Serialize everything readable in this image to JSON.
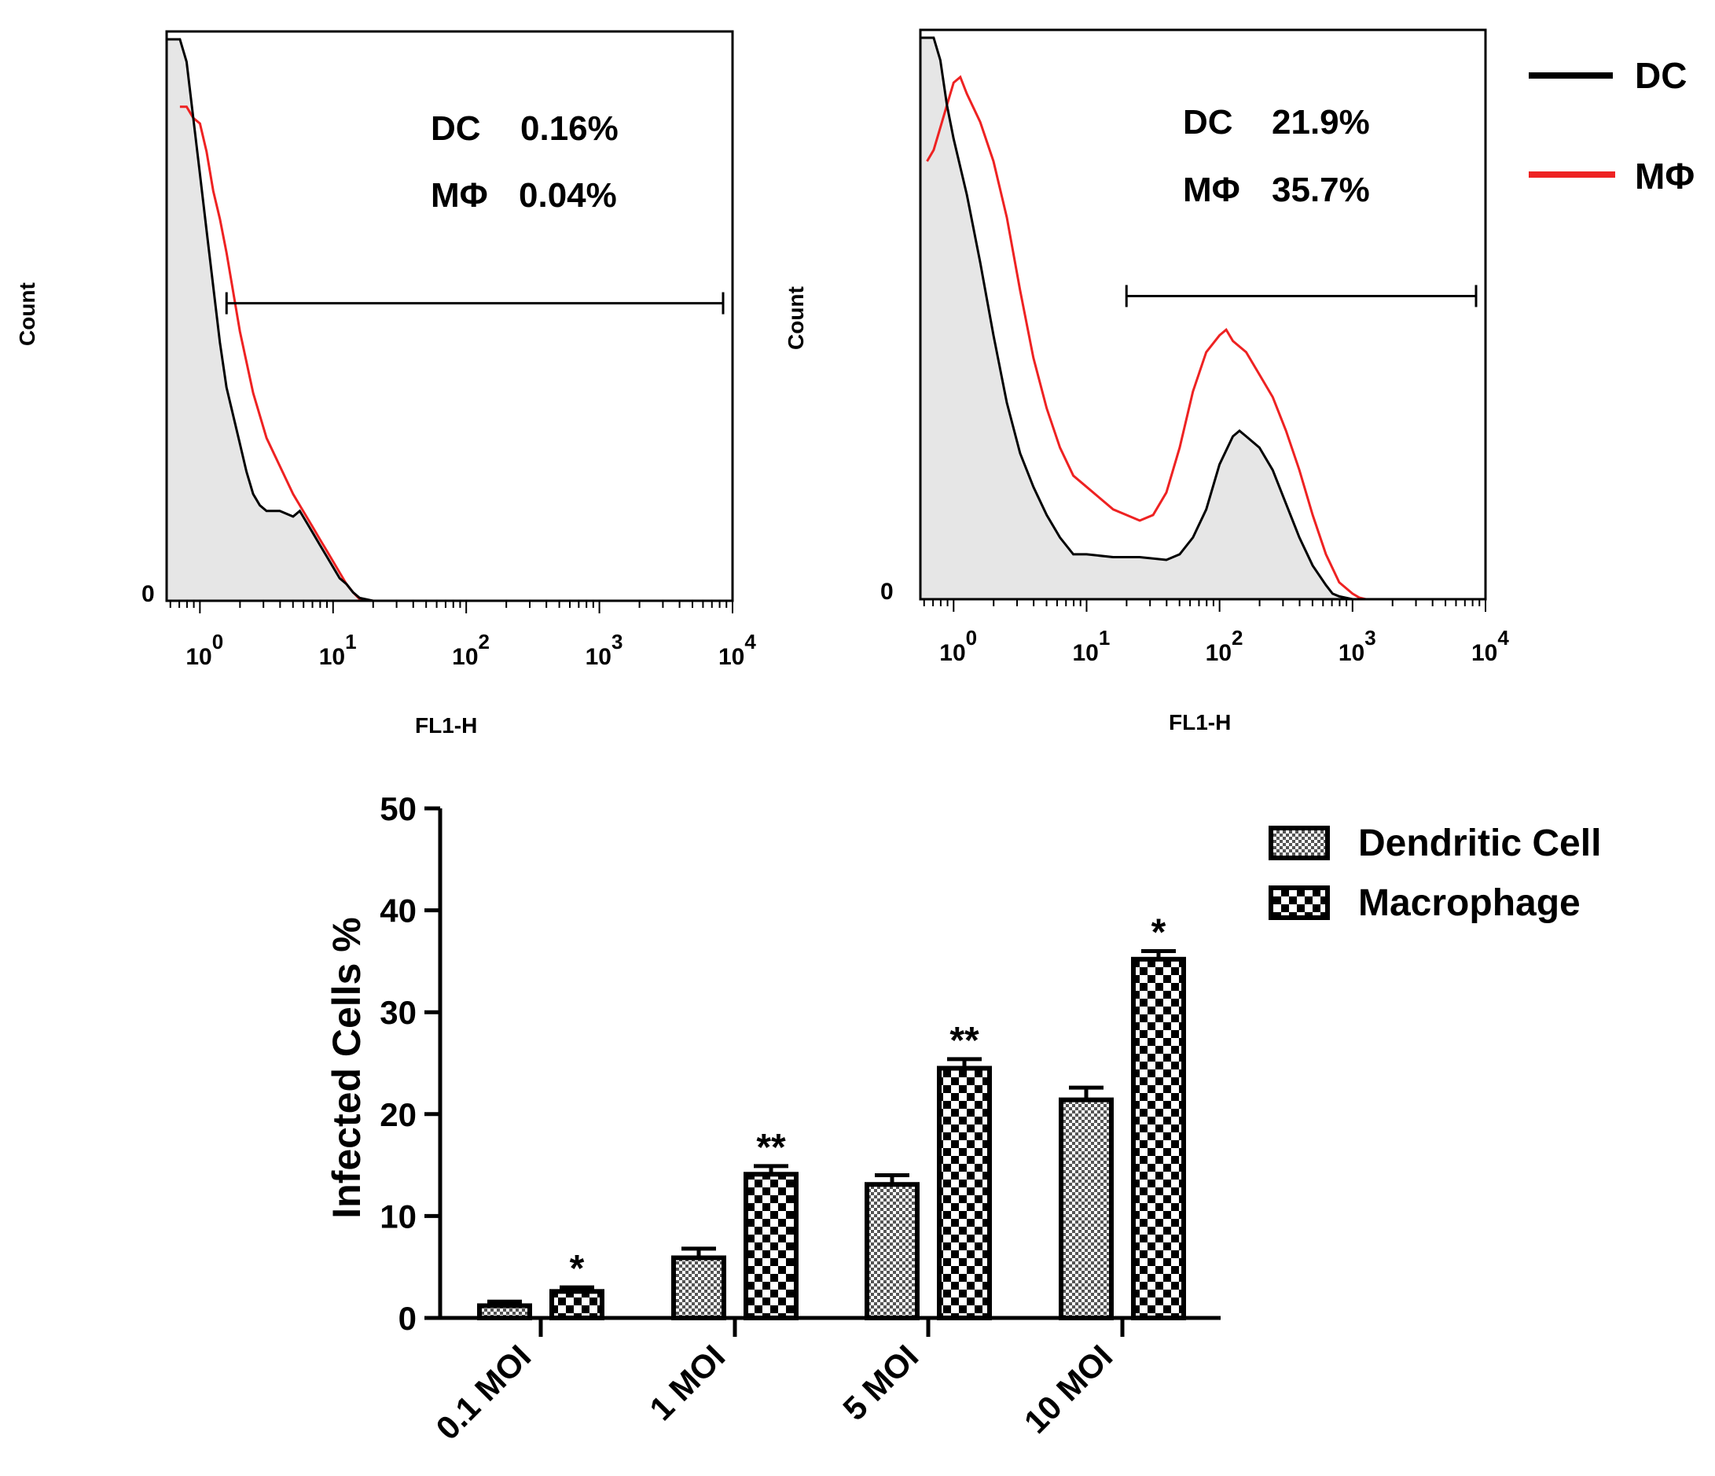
{
  "legend_top": {
    "items": [
      {
        "label": "DC",
        "color": "#000000"
      },
      {
        "label": "MΦ",
        "color": "#ee2222"
      }
    ]
  },
  "chart_data": [
    {
      "type": "line",
      "panel": "histogram-low",
      "xlabel": "FL1-H",
      "ylabel": "Count",
      "xscale": "log",
      "xlim_log10": [
        -0.25,
        4
      ],
      "ylim": [
        0,
        100
      ],
      "y_zero_label": "0",
      "x_ticks": [
        {
          "base": "10",
          "exp": "0",
          "value": 0
        },
        {
          "base": "10",
          "exp": "1",
          "value": 1
        },
        {
          "base": "10",
          "exp": "2",
          "value": 2
        },
        {
          "base": "10",
          "exp": "3",
          "value": 3
        },
        {
          "base": "10",
          "exp": "4",
          "value": 4
        }
      ],
      "annotations": [
        {
          "cell": "DC",
          "value": "0.16%"
        },
        {
          "cell": "MΦ",
          "value": "0.04%"
        }
      ],
      "gate_log10": [
        0.2,
        4
      ],
      "gate_height": 53,
      "series": [
        {
          "name": "DC",
          "color": "#000000",
          "fill": "#e6e6e6",
          "x": [
            -0.25,
            -0.15,
            -0.1,
            -0.05,
            0.0,
            0.05,
            0.1,
            0.15,
            0.2,
            0.3,
            0.35,
            0.4,
            0.45,
            0.5,
            0.6,
            0.7,
            0.75,
            0.8,
            0.85,
            0.9,
            0.95,
            1.0,
            1.05,
            1.1,
            1.15,
            1.2,
            1.3,
            1.5,
            4.0
          ],
          "y": [
            100,
            100,
            96,
            86,
            76,
            66,
            56,
            46,
            38,
            28,
            23,
            19,
            17,
            16,
            16,
            15,
            16,
            14,
            12,
            10,
            8,
            6,
            4,
            3,
            1.5,
            0.5,
            0,
            0,
            0
          ]
        },
        {
          "name": "MΦ",
          "color": "#ee2222",
          "x": [
            -0.15,
            -0.1,
            -0.05,
            0.0,
            0.05,
            0.1,
            0.15,
            0.2,
            0.25,
            0.3,
            0.4,
            0.5,
            0.6,
            0.7,
            0.8,
            0.85,
            0.9,
            0.95,
            1.0,
            1.05,
            1.1,
            1.15,
            1.2,
            1.3,
            4.0
          ],
          "y": [
            88,
            88,
            86,
            85,
            80,
            73,
            68,
            62,
            55,
            48,
            37,
            29,
            24,
            19,
            15,
            13,
            11,
            9,
            7,
            5,
            3,
            1.5,
            0.3,
            0,
            0
          ]
        }
      ]
    },
    {
      "type": "line",
      "panel": "histogram-high",
      "xlabel": "FL1-H",
      "ylabel": "Count",
      "xscale": "log",
      "xlim_log10": [
        -0.25,
        4
      ],
      "ylim": [
        0,
        100
      ],
      "y_zero_label": "0",
      "x_ticks": [
        {
          "base": "10",
          "exp": "0",
          "value": 0
        },
        {
          "base": "10",
          "exp": "1",
          "value": 1
        },
        {
          "base": "10",
          "exp": "2",
          "value": 2
        },
        {
          "base": "10",
          "exp": "3",
          "value": 3
        },
        {
          "base": "10",
          "exp": "4",
          "value": 4
        }
      ],
      "annotations": [
        {
          "cell": "DC",
          "value": "21.9%"
        },
        {
          "cell": "MΦ",
          "value": "35.7%"
        }
      ],
      "gate_log10": [
        1.3,
        4
      ],
      "gate_height": 54,
      "series": [
        {
          "name": "DC",
          "color": "#000000",
          "fill": "#e6e6e6",
          "x": [
            -0.25,
            -0.15,
            -0.1,
            -0.05,
            0.0,
            0.1,
            0.2,
            0.3,
            0.4,
            0.5,
            0.6,
            0.7,
            0.8,
            0.9,
            1.0,
            1.2,
            1.4,
            1.6,
            1.7,
            1.8,
            1.9,
            2.0,
            2.1,
            2.15,
            2.2,
            2.3,
            2.4,
            2.5,
            2.6,
            2.7,
            2.8,
            2.85,
            2.9,
            3.0,
            4.0
          ],
          "y": [
            100,
            100,
            96,
            88,
            82,
            72,
            60,
            47,
            35,
            26,
            20,
            15,
            11,
            8,
            8,
            7.5,
            7.5,
            7,
            8,
            11,
            16,
            24,
            29,
            30,
            29,
            27,
            23,
            17,
            11,
            6,
            2.5,
            1,
            0.5,
            0,
            0
          ]
        },
        {
          "name": "MΦ",
          "color": "#ee2222",
          "x": [
            -0.2,
            -0.15,
            -0.1,
            -0.05,
            0.0,
            0.05,
            0.1,
            0.2,
            0.3,
            0.4,
            0.5,
            0.6,
            0.7,
            0.8,
            0.9,
            1.0,
            1.1,
            1.2,
            1.3,
            1.4,
            1.5,
            1.6,
            1.7,
            1.8,
            1.9,
            2.0,
            2.05,
            2.1,
            2.2,
            2.3,
            2.4,
            2.5,
            2.6,
            2.7,
            2.8,
            2.9,
            3.0,
            3.05,
            3.1,
            4.0
          ],
          "y": [
            78,
            80,
            84,
            88,
            92,
            93,
            90,
            85,
            78,
            68,
            55,
            43,
            34,
            27,
            22,
            20,
            18,
            16,
            15,
            14,
            15,
            19,
            27,
            37,
            44,
            47,
            48,
            46,
            44,
            40,
            36,
            30,
            23,
            15,
            8,
            3,
            1,
            0.3,
            0,
            0
          ]
        }
      ]
    },
    {
      "type": "bar",
      "panel": "infected-cells",
      "ylabel": "Infected Cells %",
      "ylim": [
        0,
        50
      ],
      "y_ticks": [
        "0",
        "10",
        "20",
        "30",
        "40",
        "50"
      ],
      "categories": [
        "0.1 MOI",
        "1 MOI",
        "5 MOI",
        "10 MOI"
      ],
      "series": [
        {
          "name": "Dendritic Cell",
          "pattern": "fine-check",
          "values": [
            1.2,
            5.9,
            13.1,
            21.4
          ],
          "errors": [
            0.4,
            0.9,
            0.9,
            1.2
          ]
        },
        {
          "name": "Macrophage",
          "pattern": "coarse-check",
          "values": [
            2.6,
            14.1,
            24.5,
            35.2
          ],
          "errors": [
            0.4,
            0.8,
            0.9,
            0.8
          ]
        }
      ],
      "significance": [
        "*",
        "**",
        "**",
        "*"
      ],
      "legend_position": "top-right"
    }
  ]
}
